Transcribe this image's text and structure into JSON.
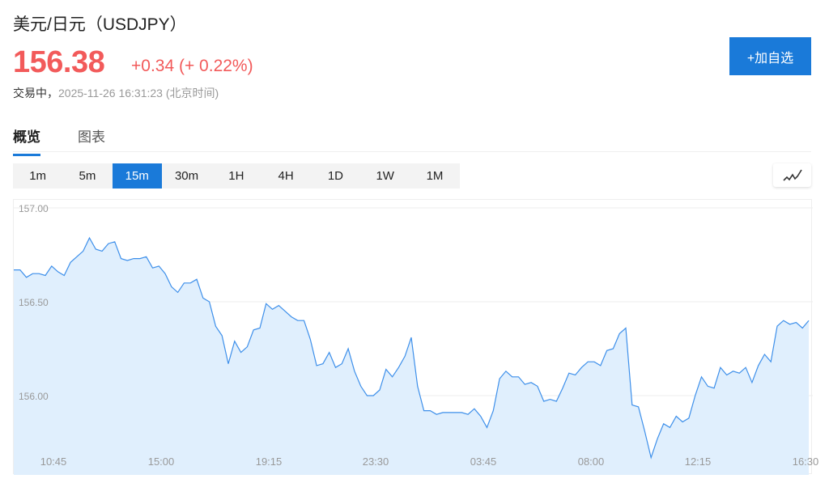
{
  "header": {
    "title": "美元/日元（USDJPY）",
    "price": "156.38",
    "change": "+0.34 (+ 0.22%)",
    "status_label": "交易中，",
    "timestamp": "2025-11-26 16:31:23 (北京时间)",
    "add_watchlist_label": "+加自选"
  },
  "tabs": [
    {
      "label": "概览",
      "active": true
    },
    {
      "label": "图表",
      "active": false
    }
  ],
  "intervals": [
    {
      "label": "1m"
    },
    {
      "label": "5m"
    },
    {
      "label": "15m",
      "active": true
    },
    {
      "label": "30m"
    },
    {
      "label": "1H"
    },
    {
      "label": "4H"
    },
    {
      "label": "1D"
    },
    {
      "label": "1W"
    },
    {
      "label": "1M"
    }
  ],
  "chart_type_icon": "line-chart-icon",
  "colors": {
    "up": "#f25a5a",
    "accent": "#1a7ad9",
    "line": "#3d8fea",
    "fill": "#e0effd"
  },
  "chart_data": {
    "type": "area",
    "interval": "15m",
    "ylim": [
      155.64,
      157.04
    ],
    "yticks": [
      "157.00",
      "156.50",
      "156.00"
    ],
    "xticks": [
      "10:45",
      "15:00",
      "19:15",
      "23:30",
      "03:45",
      "08:00",
      "12:15",
      "16:30"
    ],
    "grid": true,
    "values": [
      156.67,
      156.67,
      156.63,
      156.65,
      156.65,
      156.64,
      156.69,
      156.66,
      156.64,
      156.71,
      156.74,
      156.77,
      156.84,
      156.78,
      156.77,
      156.81,
      156.82,
      156.73,
      156.72,
      156.73,
      156.73,
      156.74,
      156.68,
      156.69,
      156.65,
      156.58,
      156.55,
      156.6,
      156.6,
      156.62,
      156.52,
      156.5,
      156.37,
      156.32,
      156.17,
      156.29,
      156.23,
      156.26,
      156.35,
      156.36,
      156.49,
      156.46,
      156.48,
      156.45,
      156.42,
      156.4,
      156.4,
      156.3,
      156.16,
      156.17,
      156.23,
      156.15,
      156.17,
      156.25,
      156.13,
      156.05,
      156.0,
      156.0,
      156.03,
      156.14,
      156.1,
      156.15,
      156.21,
      156.31,
      156.05,
      155.92,
      155.92,
      155.9,
      155.91,
      155.91,
      155.91,
      155.91,
      155.9,
      155.93,
      155.89,
      155.83,
      155.92,
      156.09,
      156.13,
      156.1,
      156.1,
      156.06,
      156.07,
      156.05,
      155.97,
      155.98,
      155.97,
      156.04,
      156.12,
      156.11,
      156.15,
      156.18,
      156.18,
      156.16,
      156.24,
      156.25,
      156.33,
      156.36,
      155.95,
      155.94,
      155.81,
      155.67,
      155.77,
      155.85,
      155.83,
      155.89,
      155.86,
      155.88,
      156.0,
      156.1,
      156.05,
      156.04,
      156.15,
      156.11,
      156.13,
      156.12,
      156.15,
      156.07,
      156.16,
      156.22,
      156.18,
      156.37,
      156.4,
      156.38,
      156.39,
      156.36,
      156.4
    ]
  }
}
